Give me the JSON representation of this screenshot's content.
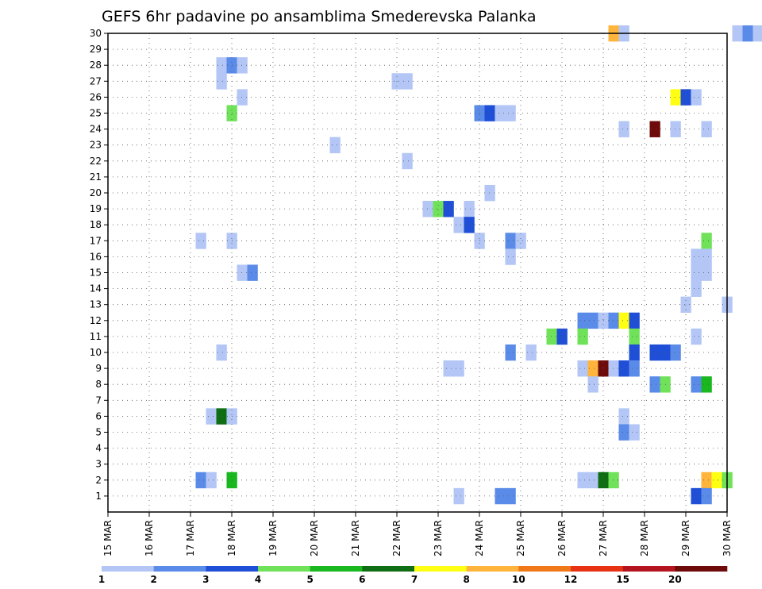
{
  "chart_data": {
    "type": "heatmap",
    "title": "GEFS 6hr padavine po ansamblima Smederevska Palanka",
    "xlabel": "",
    "ylabel": "",
    "x_tick_labels": [
      "15 MAR",
      "16 MAR",
      "17 MAR",
      "18 MAR",
      "19 MAR",
      "20 MAR",
      "21 MAR",
      "22 MAR",
      "23 MAR",
      "24 MAR",
      "25 MAR",
      "26 MAR",
      "27 MAR",
      "28 MAR",
      "29 MAR",
      "30 MAR"
    ],
    "x_range_steps": [
      0,
      60
    ],
    "y_tick_labels": [
      "1",
      "2",
      "3",
      "4",
      "5",
      "6",
      "7",
      "8",
      "9",
      "10",
      "11",
      "12",
      "13",
      "14",
      "15",
      "16",
      "17",
      "18",
      "19",
      "20",
      "21",
      "22",
      "23",
      "24",
      "25",
      "26",
      "27",
      "28",
      "29",
      "30"
    ],
    "y_range": [
      0,
      30
    ],
    "grid": true,
    "legend_position": "bottom",
    "legend": {
      "colors": [
        "#b3c6f5",
        "#5b8be8",
        "#1f4fd6",
        "#6fe25a",
        "#19b81f",
        "#0f6e14",
        "#ffff14",
        "#ffb43c",
        "#f07819",
        "#e83214",
        "#b4141e",
        "#6e0a0a"
      ],
      "labels": [
        "1",
        "2",
        "3",
        "4",
        "5",
        "6",
        "7",
        "8",
        "10",
        "12",
        "15",
        "20"
      ]
    },
    "cell_value_bins_meaning": "each cell = [time_step_6h, member, color_bin]; bin index selects legend.colors",
    "cells": [
      [
        49,
        30,
        8
      ],
      [
        50,
        30,
        1
      ],
      [
        61,
        30,
        1
      ],
      [
        62,
        30,
        2
      ],
      [
        63,
        30,
        1
      ],
      [
        11,
        28,
        1
      ],
      [
        12,
        28,
        2
      ],
      [
        13,
        28,
        1
      ],
      [
        11,
        27,
        1
      ],
      [
        28,
        27,
        1
      ],
      [
        29,
        27,
        1
      ],
      [
        13,
        26,
        1
      ],
      [
        55,
        26,
        7
      ],
      [
        56,
        26,
        3
      ],
      [
        57,
        26,
        1
      ],
      [
        12,
        25,
        4
      ],
      [
        36,
        25,
        2
      ],
      [
        37,
        25,
        3
      ],
      [
        38,
        25,
        1
      ],
      [
        39,
        25,
        1
      ],
      [
        50,
        24,
        1
      ],
      [
        53,
        24,
        12
      ],
      [
        55,
        24,
        1
      ],
      [
        58,
        24,
        1
      ],
      [
        22,
        23,
        1
      ],
      [
        29,
        22,
        1
      ],
      [
        37,
        20,
        1
      ],
      [
        31,
        19,
        1
      ],
      [
        32,
        19,
        4
      ],
      [
        33,
        19,
        3
      ],
      [
        35,
        19,
        1
      ],
      [
        34,
        18,
        1
      ],
      [
        35,
        18,
        3
      ],
      [
        9,
        17,
        1
      ],
      [
        12,
        17,
        1
      ],
      [
        36,
        17,
        1
      ],
      [
        39,
        17,
        2
      ],
      [
        40,
        17,
        1
      ],
      [
        58,
        17,
        4
      ],
      [
        39,
        16,
        1
      ],
      [
        57,
        16,
        1
      ],
      [
        58,
        16,
        1
      ],
      [
        13,
        15,
        1
      ],
      [
        14,
        15,
        2
      ],
      [
        57,
        15,
        1
      ],
      [
        58,
        15,
        1
      ],
      [
        57,
        14,
        1
      ],
      [
        56,
        13,
        1
      ],
      [
        60,
        13,
        1
      ],
      [
        46,
        12,
        2
      ],
      [
        47,
        12,
        2
      ],
      [
        48,
        12,
        1
      ],
      [
        49,
        12,
        2
      ],
      [
        50,
        12,
        7
      ],
      [
        51,
        12,
        3
      ],
      [
        43,
        11,
        4
      ],
      [
        44,
        11,
        3
      ],
      [
        46,
        11,
        4
      ],
      [
        51,
        11,
        4
      ],
      [
        57,
        11,
        1
      ],
      [
        11,
        10,
        1
      ],
      [
        39,
        10,
        2
      ],
      [
        41,
        10,
        1
      ],
      [
        51,
        10,
        3
      ],
      [
        53,
        10,
        3
      ],
      [
        54,
        10,
        3
      ],
      [
        55,
        10,
        2
      ],
      [
        33,
        9,
        1
      ],
      [
        34,
        9,
        1
      ],
      [
        46,
        9,
        1
      ],
      [
        47,
        9,
        8
      ],
      [
        48,
        9,
        12
      ],
      [
        49,
        9,
        1
      ],
      [
        50,
        9,
        3
      ],
      [
        51,
        9,
        2
      ],
      [
        47,
        8,
        1
      ],
      [
        53,
        8,
        2
      ],
      [
        54,
        8,
        4
      ],
      [
        57,
        8,
        2
      ],
      [
        58,
        8,
        5
      ],
      [
        10,
        6,
        1
      ],
      [
        11,
        6,
        6
      ],
      [
        12,
        6,
        1
      ],
      [
        50,
        6,
        1
      ],
      [
        50,
        5,
        2
      ],
      [
        51,
        5,
        1
      ],
      [
        9,
        2,
        2
      ],
      [
        10,
        2,
        1
      ],
      [
        12,
        2,
        5
      ],
      [
        46,
        2,
        1
      ],
      [
        47,
        2,
        1
      ],
      [
        48,
        2,
        6
      ],
      [
        49,
        2,
        4
      ],
      [
        58,
        2,
        8
      ],
      [
        59,
        2,
        7
      ],
      [
        60,
        2,
        4
      ],
      [
        34,
        1,
        1
      ],
      [
        38,
        1,
        2
      ],
      [
        39,
        1,
        2
      ],
      [
        57,
        1,
        3
      ],
      [
        58,
        1,
        2
      ]
    ]
  }
}
